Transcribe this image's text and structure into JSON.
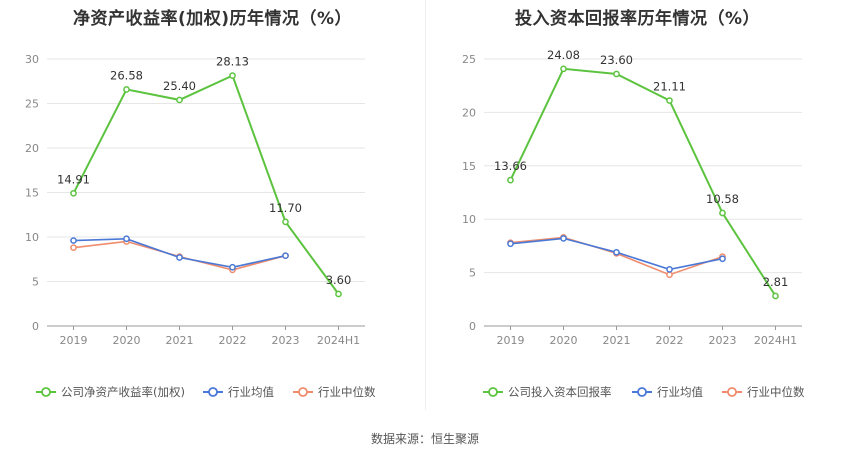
{
  "chart_data": [
    {
      "type": "line",
      "title": "净资产收益率(加权)历年情况（%）",
      "categories": [
        "2019",
        "2020",
        "2021",
        "2022",
        "2023",
        "2024H1"
      ],
      "ylim": [
        0,
        30
      ],
      "yticks": [
        0,
        5,
        10,
        15,
        20,
        25,
        30
      ],
      "grid": true,
      "legend_position": "bottom",
      "series": [
        {
          "name": "公司净资产收益率(加权)",
          "color": "#5cc33f",
          "values": [
            14.91,
            26.58,
            25.4,
            28.13,
            11.7,
            3.6
          ],
          "labels": [
            "14.91",
            "26.58",
            "25.40",
            "28.13",
            "11.70",
            "3.60"
          ]
        },
        {
          "name": "行业均值",
          "color": "#4a78d6",
          "values": [
            9.6,
            9.8,
            7.7,
            6.6,
            7.9,
            null
          ]
        },
        {
          "name": "行业中位数",
          "color": "#ef8c6d",
          "values": [
            8.8,
            9.5,
            7.8,
            6.3,
            7.9,
            null
          ]
        }
      ]
    },
    {
      "type": "line",
      "title": "投入资本回报率历年情况（%）",
      "categories": [
        "2019",
        "2020",
        "2021",
        "2022",
        "2023",
        "2024H1"
      ],
      "ylim": [
        0,
        25
      ],
      "yticks": [
        0,
        5,
        10,
        15,
        20,
        25
      ],
      "grid": true,
      "legend_position": "bottom",
      "series": [
        {
          "name": "公司投入资本回报率",
          "color": "#5cc33f",
          "values": [
            13.66,
            24.08,
            23.6,
            21.11,
            10.58,
            2.81
          ],
          "labels": [
            "13.66",
            "24.08",
            "23.60",
            "21.11",
            "10.58",
            "2.81"
          ]
        },
        {
          "name": "行业均值",
          "color": "#4a78d6",
          "values": [
            7.7,
            8.2,
            6.9,
            5.3,
            6.3,
            null
          ]
        },
        {
          "name": "行业中位数",
          "color": "#ef8c6d",
          "values": [
            7.8,
            8.3,
            6.8,
            4.8,
            6.5,
            null
          ]
        }
      ]
    }
  ],
  "footer": {
    "source": "数据来源：恒生聚源"
  }
}
